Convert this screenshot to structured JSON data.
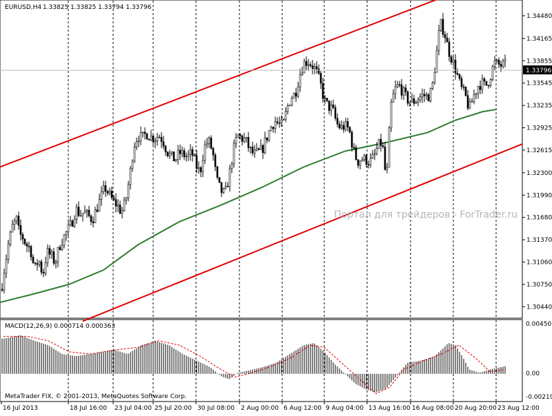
{
  "header": {
    "symbol": "EURUSD,H4",
    "ohlc": "1.33825 1.33825 1.33794 1.33796"
  },
  "watermark": "Портал для трейдеров - ForTrader.ru",
  "copyright": "MetaTrader FIX, © 2001-2013, MetaQuotes Software Corp.",
  "current_price": "1.33796",
  "macd": {
    "label": "MACD(12,26,9) 0.000714 0.000363",
    "ticks": [
      "0.004503",
      "0.00",
      "-0.002192"
    ]
  },
  "colors": {
    "channel": "#e00000",
    "moving_average": "#2e7d2e",
    "candle": "#000000",
    "macd_signal": "#e00000"
  },
  "chart_data": {
    "type": "candlestick",
    "symbol": "EURUSD",
    "timeframe": "H4",
    "ylim": [
      1.3029,
      1.3468
    ],
    "yticks": [
      "1.34480",
      "1.34165",
      "1.33855",
      "1.33545",
      "1.33235",
      "1.32925",
      "1.32615",
      "1.32300",
      "1.31990",
      "1.31680",
      "1.31370",
      "1.31060",
      "1.30750",
      "1.30440"
    ],
    "yticks_values": [
      1.3448,
      1.34165,
      1.33855,
      1.33545,
      1.33235,
      1.32925,
      1.32615,
      1.323,
      1.3199,
      1.3168,
      1.3137,
      1.3106,
      1.3075,
      1.3044
    ],
    "xticks": [
      "16 Jul 2013",
      "18 Jul 16:00",
      "23 Jul 04:00",
      "25 Jul 20:00",
      "30 Jul 08:00",
      "2 Aug 00:00",
      "6 Aug 12:00",
      "9 Aug 04:00",
      "13 Aug 16:00",
      "16 Aug 08:00",
      "20 Aug 20:00",
      "23 Aug 12:00"
    ],
    "close_path": [
      [
        0,
        1.3055
      ],
      [
        6,
        1.3095
      ],
      [
        12,
        1.313
      ],
      [
        18,
        1.3155
      ],
      [
        24,
        1.3165
      ],
      [
        28,
        1.3145
      ],
      [
        33,
        1.314
      ],
      [
        38,
        1.313
      ],
      [
        44,
        1.3125
      ],
      [
        50,
        1.3095
      ],
      [
        56,
        1.311
      ],
      [
        62,
        1.3088
      ],
      [
        68,
        1.312
      ],
      [
        74,
        1.3115
      ],
      [
        80,
        1.3105
      ],
      [
        86,
        1.3128
      ],
      [
        92,
        1.314
      ],
      [
        98,
        1.315
      ],
      [
        104,
        1.316
      ],
      [
        110,
        1.318
      ],
      [
        116,
        1.3172
      ],
      [
        122,
        1.3175
      ],
      [
        128,
        1.317
      ],
      [
        134,
        1.3165
      ],
      [
        140,
        1.318
      ],
      [
        146,
        1.3195
      ],
      [
        152,
        1.321
      ],
      [
        158,
        1.32
      ],
      [
        164,
        1.319
      ],
      [
        170,
        1.3185
      ],
      [
        176,
        1.3175
      ],
      [
        182,
        1.319
      ],
      [
        188,
        1.3225
      ],
      [
        194,
        1.3268
      ],
      [
        200,
        1.3282
      ],
      [
        206,
        1.3278
      ],
      [
        212,
        1.3285
      ],
      [
        218,
        1.328
      ],
      [
        224,
        1.3278
      ],
      [
        230,
        1.3282
      ],
      [
        236,
        1.3275
      ],
      [
        242,
        1.326
      ],
      [
        248,
        1.3252
      ],
      [
        254,
        1.3248
      ],
      [
        260,
        1.3258
      ],
      [
        266,
        1.3255
      ],
      [
        272,
        1.3252
      ],
      [
        278,
        1.3258
      ],
      [
        284,
        1.324
      ],
      [
        290,
        1.323
      ],
      [
        296,
        1.3265
      ],
      [
        302,
        1.3275
      ],
      [
        308,
        1.326
      ],
      [
        314,
        1.322
      ],
      [
        320,
        1.3205
      ],
      [
        326,
        1.32
      ],
      [
        332,
        1.3225
      ],
      [
        338,
        1.326
      ],
      [
        344,
        1.3282
      ],
      [
        350,
        1.3278
      ],
      [
        356,
        1.3275
      ],
      [
        362,
        1.3262
      ],
      [
        368,
        1.3255
      ],
      [
        374,
        1.3258
      ],
      [
        380,
        1.3262
      ],
      [
        386,
        1.3278
      ],
      [
        392,
        1.3292
      ],
      [
        398,
        1.3302
      ],
      [
        404,
        1.3298
      ],
      [
        410,
        1.3295
      ],
      [
        416,
        1.332
      ],
      [
        422,
        1.3335
      ],
      [
        428,
        1.334
      ],
      [
        434,
        1.3365
      ],
      [
        440,
        1.3382
      ],
      [
        446,
        1.3385
      ],
      [
        452,
        1.338
      ],
      [
        458,
        1.3372
      ],
      [
        464,
        1.3355
      ],
      [
        470,
        1.333
      ],
      [
        476,
        1.3322
      ],
      [
        482,
        1.3318
      ],
      [
        488,
        1.3298
      ],
      [
        494,
        1.3292
      ],
      [
        500,
        1.3295
      ],
      [
        506,
        1.329
      ],
      [
        512,
        1.3262
      ],
      [
        518,
        1.3245
      ],
      [
        524,
        1.325
      ],
      [
        530,
        1.3248
      ],
      [
        536,
        1.3245
      ],
      [
        542,
        1.3252
      ],
      [
        548,
        1.3268
      ],
      [
        554,
        1.3272
      ],
      [
        560,
        1.3215
      ],
      [
        566,
        1.332
      ],
      [
        572,
        1.3345
      ],
      [
        578,
        1.3352
      ],
      [
        584,
        1.3342
      ],
      [
        590,
        1.3332
      ],
      [
        596,
        1.3328
      ],
      [
        602,
        1.333
      ],
      [
        608,
        1.3335
      ],
      [
        614,
        1.3338
      ],
      [
        620,
        1.3335
      ],
      [
        626,
        1.3345
      ],
      [
        632,
        1.339
      ],
      [
        638,
        1.3438
      ],
      [
        644,
        1.3425
      ],
      [
        650,
        1.34
      ],
      [
        656,
        1.3385
      ],
      [
        662,
        1.3368
      ],
      [
        668,
        1.3348
      ],
      [
        674,
        1.3338
      ],
      [
        680,
        1.3318
      ],
      [
        686,
        1.3335
      ],
      [
        692,
        1.335
      ],
      [
        698,
        1.3355
      ],
      [
        704,
        1.335
      ],
      [
        710,
        1.3362
      ],
      [
        716,
        1.3382
      ],
      [
        722,
        1.338
      ],
      [
        728,
        1.3379
      ],
      [
        732,
        1.338
      ]
    ],
    "moving_average": [
      [
        0,
        1.305
      ],
      [
        50,
        1.3062
      ],
      [
        100,
        1.3075
      ],
      [
        150,
        1.3095
      ],
      [
        200,
        1.313
      ],
      [
        260,
        1.3162
      ],
      [
        320,
        1.3185
      ],
      [
        380,
        1.321
      ],
      [
        440,
        1.3238
      ],
      [
        500,
        1.326
      ],
      [
        560,
        1.3272
      ],
      [
        620,
        1.3286
      ],
      [
        660,
        1.3303
      ],
      [
        700,
        1.3315
      ],
      [
        720,
        1.3318
      ]
    ],
    "channel_upper": [
      [
        0,
        1.3238
      ],
      [
        645,
        1.3475
      ]
    ],
    "channel_lower": [
      [
        120,
        1.3024
      ],
      [
        757,
        1.327
      ]
    ],
    "macd_ylim": [
      -0.00245,
      0.0048
    ],
    "macd_histogram": [
      [
        5,
        0.0032
      ],
      [
        30,
        0.0035
      ],
      [
        50,
        0.003
      ],
      [
        70,
        0.0026
      ],
      [
        90,
        0.0018
      ],
      [
        110,
        0.0016
      ],
      [
        140,
        0.0019
      ],
      [
        165,
        0.0022
      ],
      [
        185,
        0.0018
      ],
      [
        205,
        0.0026
      ],
      [
        225,
        0.003
      ],
      [
        245,
        0.0026
      ],
      [
        265,
        0.0018
      ],
      [
        285,
        0.0012
      ],
      [
        305,
        0.0006
      ],
      [
        320,
        -0.0002
      ],
      [
        332,
        -0.0005
      ],
      [
        345,
        0.0001
      ],
      [
        360,
        0.0003
      ],
      [
        380,
        0.0006
      ],
      [
        400,
        0.001
      ],
      [
        420,
        0.0018
      ],
      [
        440,
        0.0026
      ],
      [
        455,
        0.0028
      ],
      [
        470,
        0.002
      ],
      [
        485,
        0.0009
      ],
      [
        500,
        0.0
      ],
      [
        515,
        -0.0009
      ],
      [
        530,
        -0.0014
      ],
      [
        545,
        -0.0017
      ],
      [
        560,
        -0.0013
      ],
      [
        575,
        -0.0002
      ],
      [
        590,
        0.001
      ],
      [
        610,
        0.0012
      ],
      [
        630,
        0.0016
      ],
      [
        650,
        0.0028
      ],
      [
        660,
        0.0026
      ],
      [
        670,
        0.0016
      ],
      [
        680,
        0.0004
      ],
      [
        695,
        0.0001
      ],
      [
        710,
        0.0004
      ],
      [
        725,
        0.0006
      ],
      [
        732,
        0.0007
      ]
    ],
    "macd_signal": [
      [
        5,
        0.0034
      ],
      [
        40,
        0.0034
      ],
      [
        70,
        0.003
      ],
      [
        100,
        0.002
      ],
      [
        130,
        0.0018
      ],
      [
        170,
        0.0022
      ],
      [
        200,
        0.0024
      ],
      [
        230,
        0.003
      ],
      [
        260,
        0.0026
      ],
      [
        290,
        0.0016
      ],
      [
        315,
        0.0006
      ],
      [
        340,
        -0.0003
      ],
      [
        360,
        0.0
      ],
      [
        390,
        0.0006
      ],
      [
        420,
        0.0014
      ],
      [
        450,
        0.0026
      ],
      [
        470,
        0.0024
      ],
      [
        495,
        0.001
      ],
      [
        520,
        -0.0004
      ],
      [
        545,
        -0.0018
      ],
      [
        565,
        -0.0012
      ],
      [
        585,
        0.0004
      ],
      [
        610,
        0.0011
      ],
      [
        640,
        0.0018
      ],
      [
        665,
        0.0026
      ],
      [
        690,
        0.0014
      ],
      [
        710,
        0.0002
      ],
      [
        732,
        0.0004
      ]
    ]
  }
}
